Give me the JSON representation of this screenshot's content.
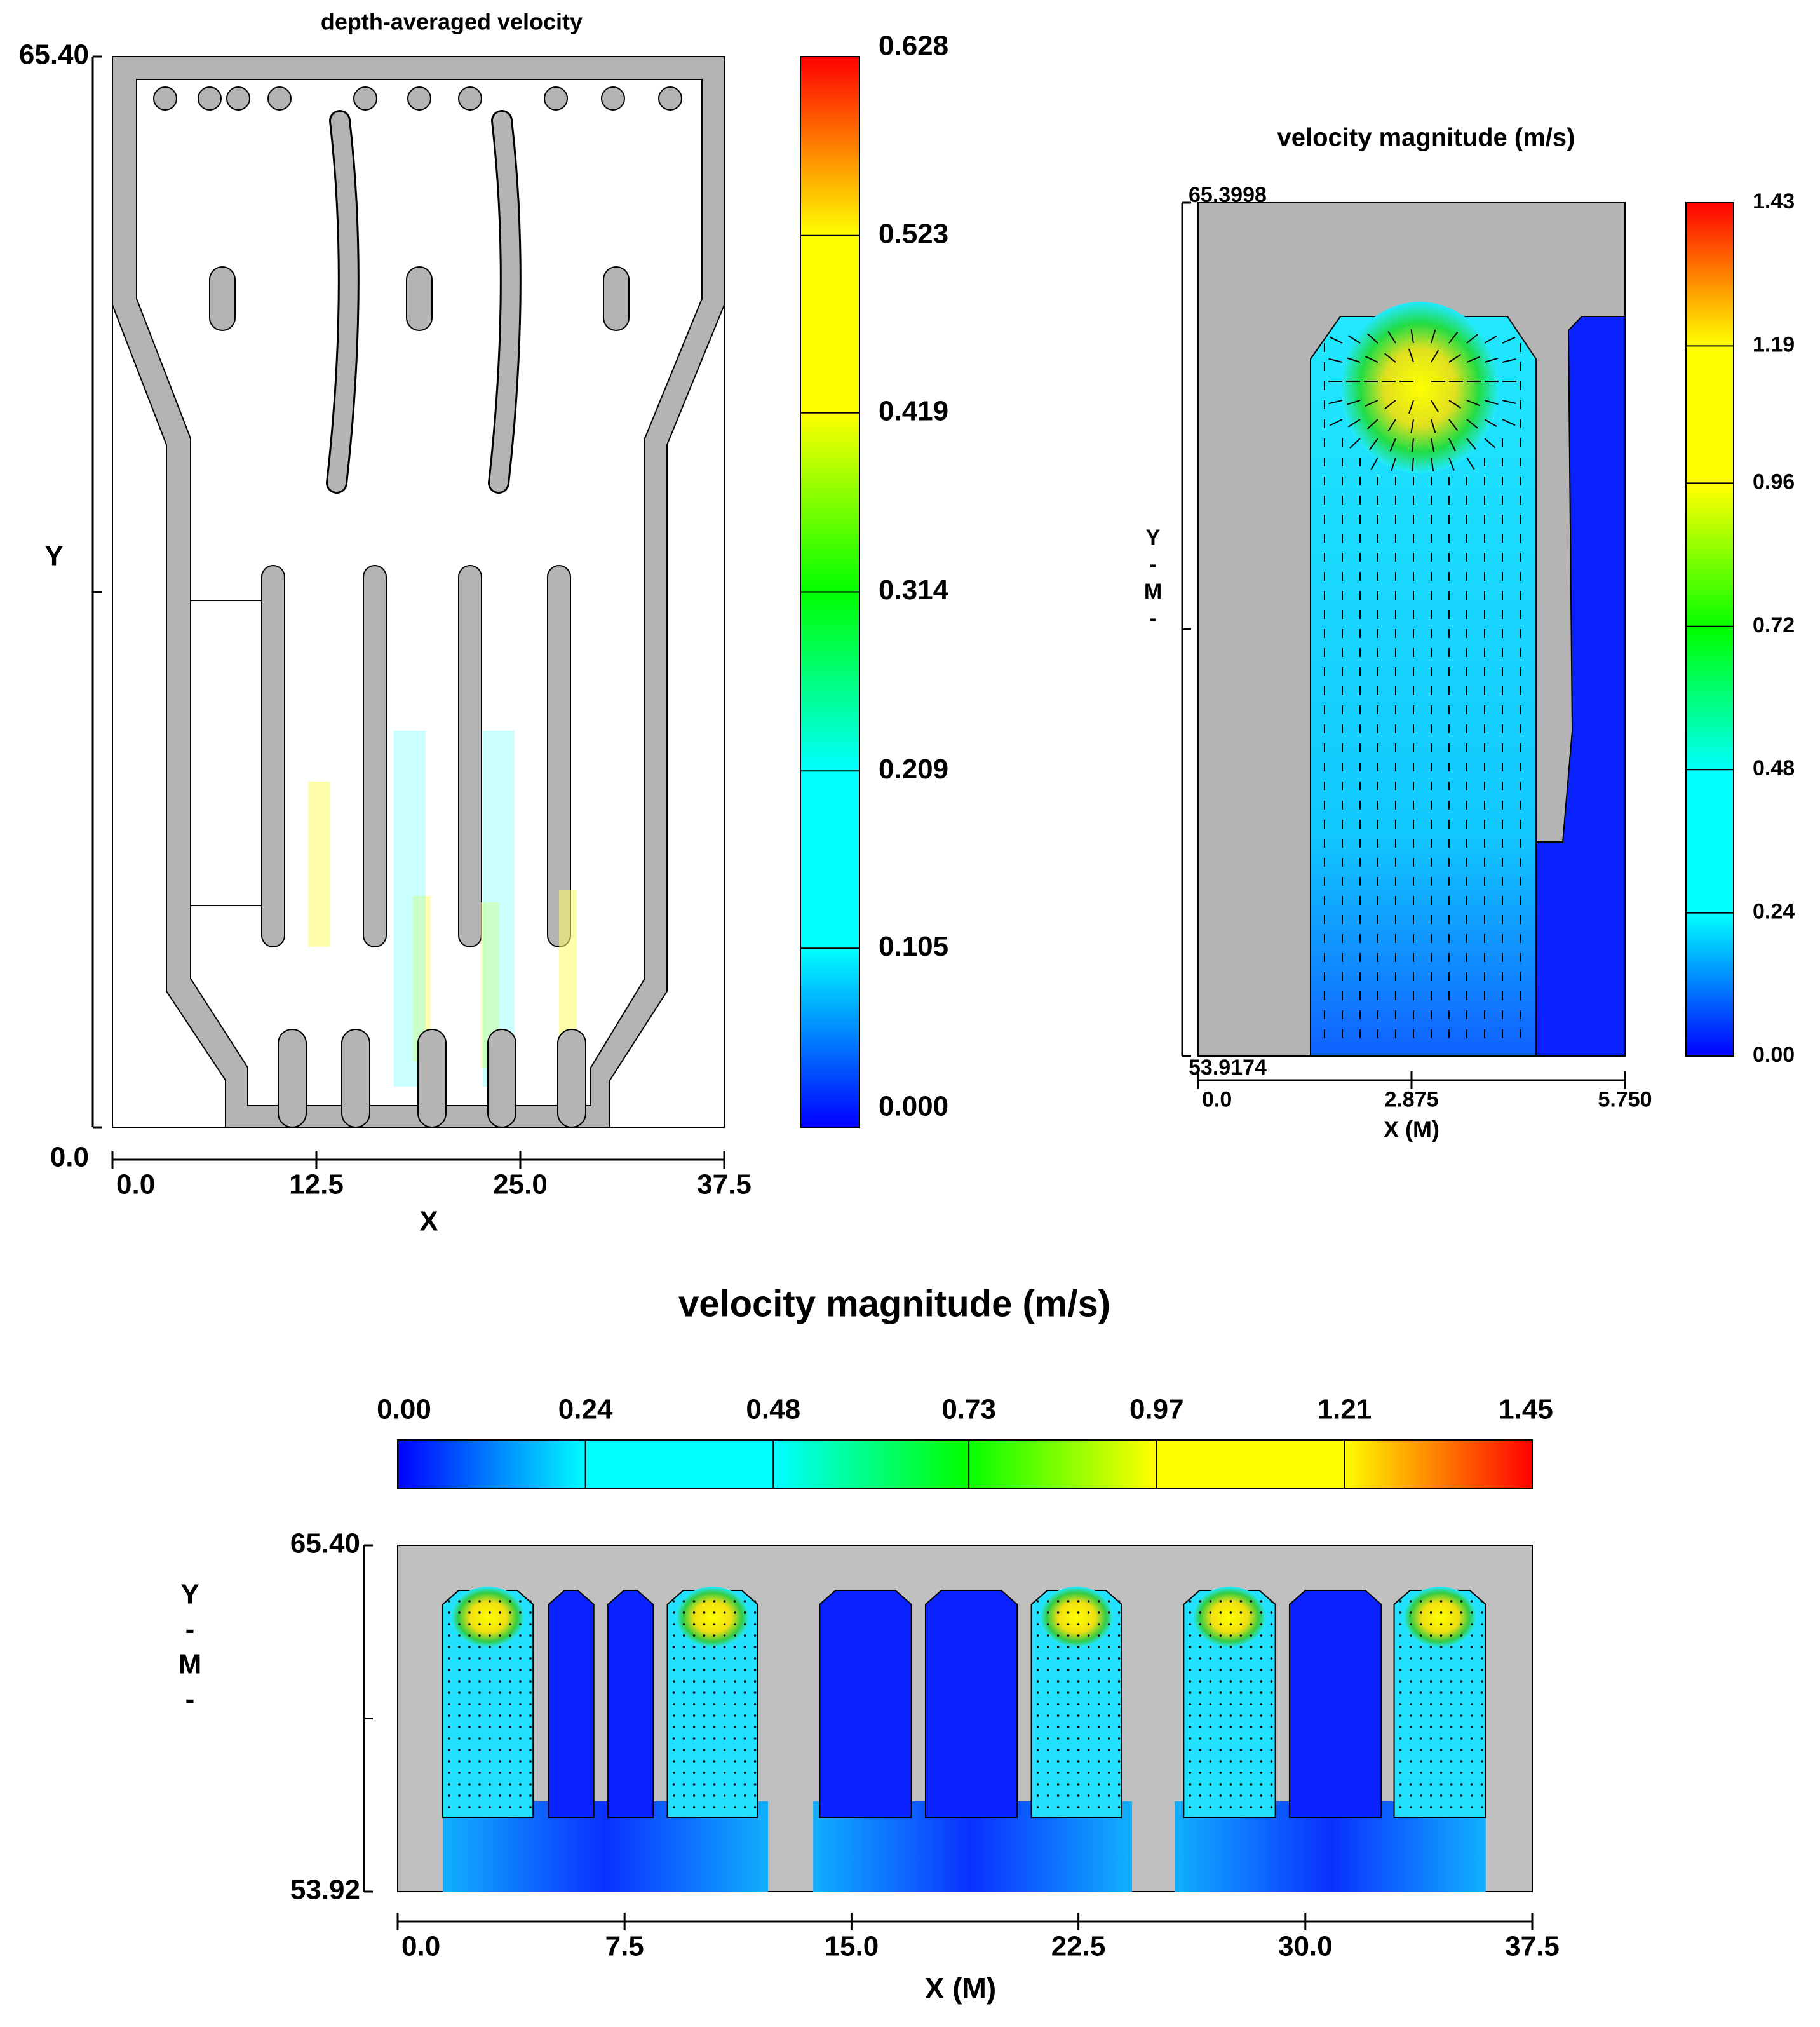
{
  "chart_data": [
    {
      "type": "contour",
      "title": "depth-averaged velocity",
      "x_label": "X",
      "y_label": [
        "Y"
      ],
      "xlim": [
        0,
        37.5
      ],
      "xticks": [
        {
          "value": 0,
          "label": "0.0"
        },
        12.5,
        {
          "value": 25,
          "label": "25.0"
        },
        37.5
      ],
      "ylim": [
        0,
        65.4
      ],
      "yticks": [
        {
          "value": 0,
          "label": "0.0"
        },
        {
          "value": 65.4,
          "label": "65.40"
        }
      ],
      "colorbar": {
        "orientation": "vertical",
        "lim": [
          0,
          0.628
        ],
        "ticks": [
          {
            "value": 0,
            "label": "0.000"
          },
          0.105,
          0.209,
          0.314,
          0.419,
          0.523,
          0.628
        ]
      },
      "colormap": [
        "#0000ff",
        "#00ffff",
        "#00ffff",
        "#00ff00",
        "#ffff00",
        "#ffff00",
        "#ff0000"
      ]
    },
    {
      "type": "contour",
      "title": "velocity magnitude (m/s)",
      "x_label": "X  (M)",
      "y_label": [
        "Y",
        "-",
        "M",
        "-"
      ],
      "xlim": [
        0,
        5.75
      ],
      "xticks": [
        {
          "value": 0,
          "label": "0.0"
        },
        2.875,
        {
          "value": 5.75,
          "label": "5.750"
        }
      ],
      "ylim": [
        53.9174,
        65.3998
      ],
      "yticks": [
        53.9174,
        65.3998
      ],
      "colorbar": {
        "orientation": "vertical",
        "lim": [
          0,
          1.43
        ],
        "ticks": [
          {
            "value": 0,
            "label": "0.00"
          },
          0.24,
          0.48,
          0.72,
          0.96,
          1.19,
          1.43
        ]
      },
      "colormap": [
        "#0000ff",
        "#00ffff",
        "#00ffff",
        "#00ff00",
        "#ffff00",
        "#ffff00",
        "#ff0000"
      ]
    },
    {
      "type": "contour",
      "title": "velocity magnitude (m/s)",
      "x_label": "X  (M)",
      "y_label": [
        "Y",
        "-",
        "M",
        "-"
      ],
      "xlim": [
        0,
        37.5
      ],
      "xticks": [
        {
          "value": 0,
          "label": "0.0"
        },
        7.5,
        {
          "value": 15,
          "label": "15.0"
        },
        22.5,
        {
          "value": 30,
          "label": "30.0"
        },
        37.5
      ],
      "ylim": [
        53.92,
        65.4
      ],
      "yticks": [
        53.92,
        {
          "value": 65.4,
          "label": "65.40"
        }
      ],
      "colorbar": {
        "orientation": "horizontal",
        "lim": [
          0,
          1.45
        ],
        "ticks": [
          {
            "value": 0,
            "label": "0.00"
          },
          0.24,
          0.48,
          0.73,
          0.97,
          1.21,
          1.45
        ]
      },
      "colormap": [
        "#0000ff",
        "#00ffff",
        "#00ffff",
        "#00ff00",
        "#ffff00",
        "#ffff00",
        "#ff0000"
      ]
    }
  ]
}
